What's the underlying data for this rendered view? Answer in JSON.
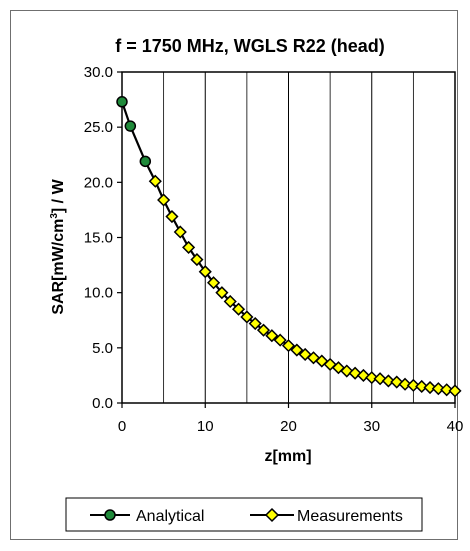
{
  "chart_data": {
    "type": "scatter",
    "title": "f = 1750 MHz, WGLS R22 (head)",
    "xlabel": "z[mm]",
    "ylabel": {
      "before": "SAR[mW/cm",
      "sup": "3",
      "after": "] / W"
    },
    "xlim": [
      0,
      40
    ],
    "ylim": [
      0,
      30
    ],
    "xticks": [
      0,
      10,
      20,
      30,
      40
    ],
    "xtick_labels": [
      "0",
      "10",
      "20",
      "30",
      "40"
    ],
    "yticks": [
      0,
      5,
      10,
      15,
      20,
      25,
      30
    ],
    "ytick_labels": [
      "0.0",
      "5.0",
      "10.0",
      "15.0",
      "20.0",
      "25.0",
      "30.0"
    ],
    "grid": "vertical",
    "legend_position": "bottom",
    "series": [
      {
        "name": "Analytical",
        "marker": "circle",
        "color": "#1f8a3a",
        "x": [
          0,
          1,
          2.8
        ],
        "y": [
          27.3,
          25.1,
          21.9
        ]
      },
      {
        "name": "Measurements",
        "marker": "diamond",
        "color": "#ffff00",
        "x": [
          4,
          5,
          6,
          7,
          8,
          9,
          10,
          11,
          12,
          13,
          14,
          15,
          16,
          17,
          18,
          19,
          20,
          21,
          22,
          23,
          24,
          25,
          26,
          27,
          28,
          29,
          30,
          31,
          32,
          33,
          34,
          35,
          36,
          37,
          38,
          39,
          40
        ],
        "y": [
          20.1,
          18.4,
          16.9,
          15.5,
          14.1,
          13.0,
          11.9,
          10.9,
          10.0,
          9.2,
          8.5,
          7.8,
          7.2,
          6.6,
          6.1,
          5.7,
          5.2,
          4.8,
          4.4,
          4.1,
          3.8,
          3.5,
          3.2,
          2.9,
          2.7,
          2.5,
          2.3,
          2.2,
          2.0,
          1.9,
          1.7,
          1.6,
          1.5,
          1.4,
          1.3,
          1.2,
          1.1
        ]
      }
    ],
    "line_color": "#000000"
  }
}
